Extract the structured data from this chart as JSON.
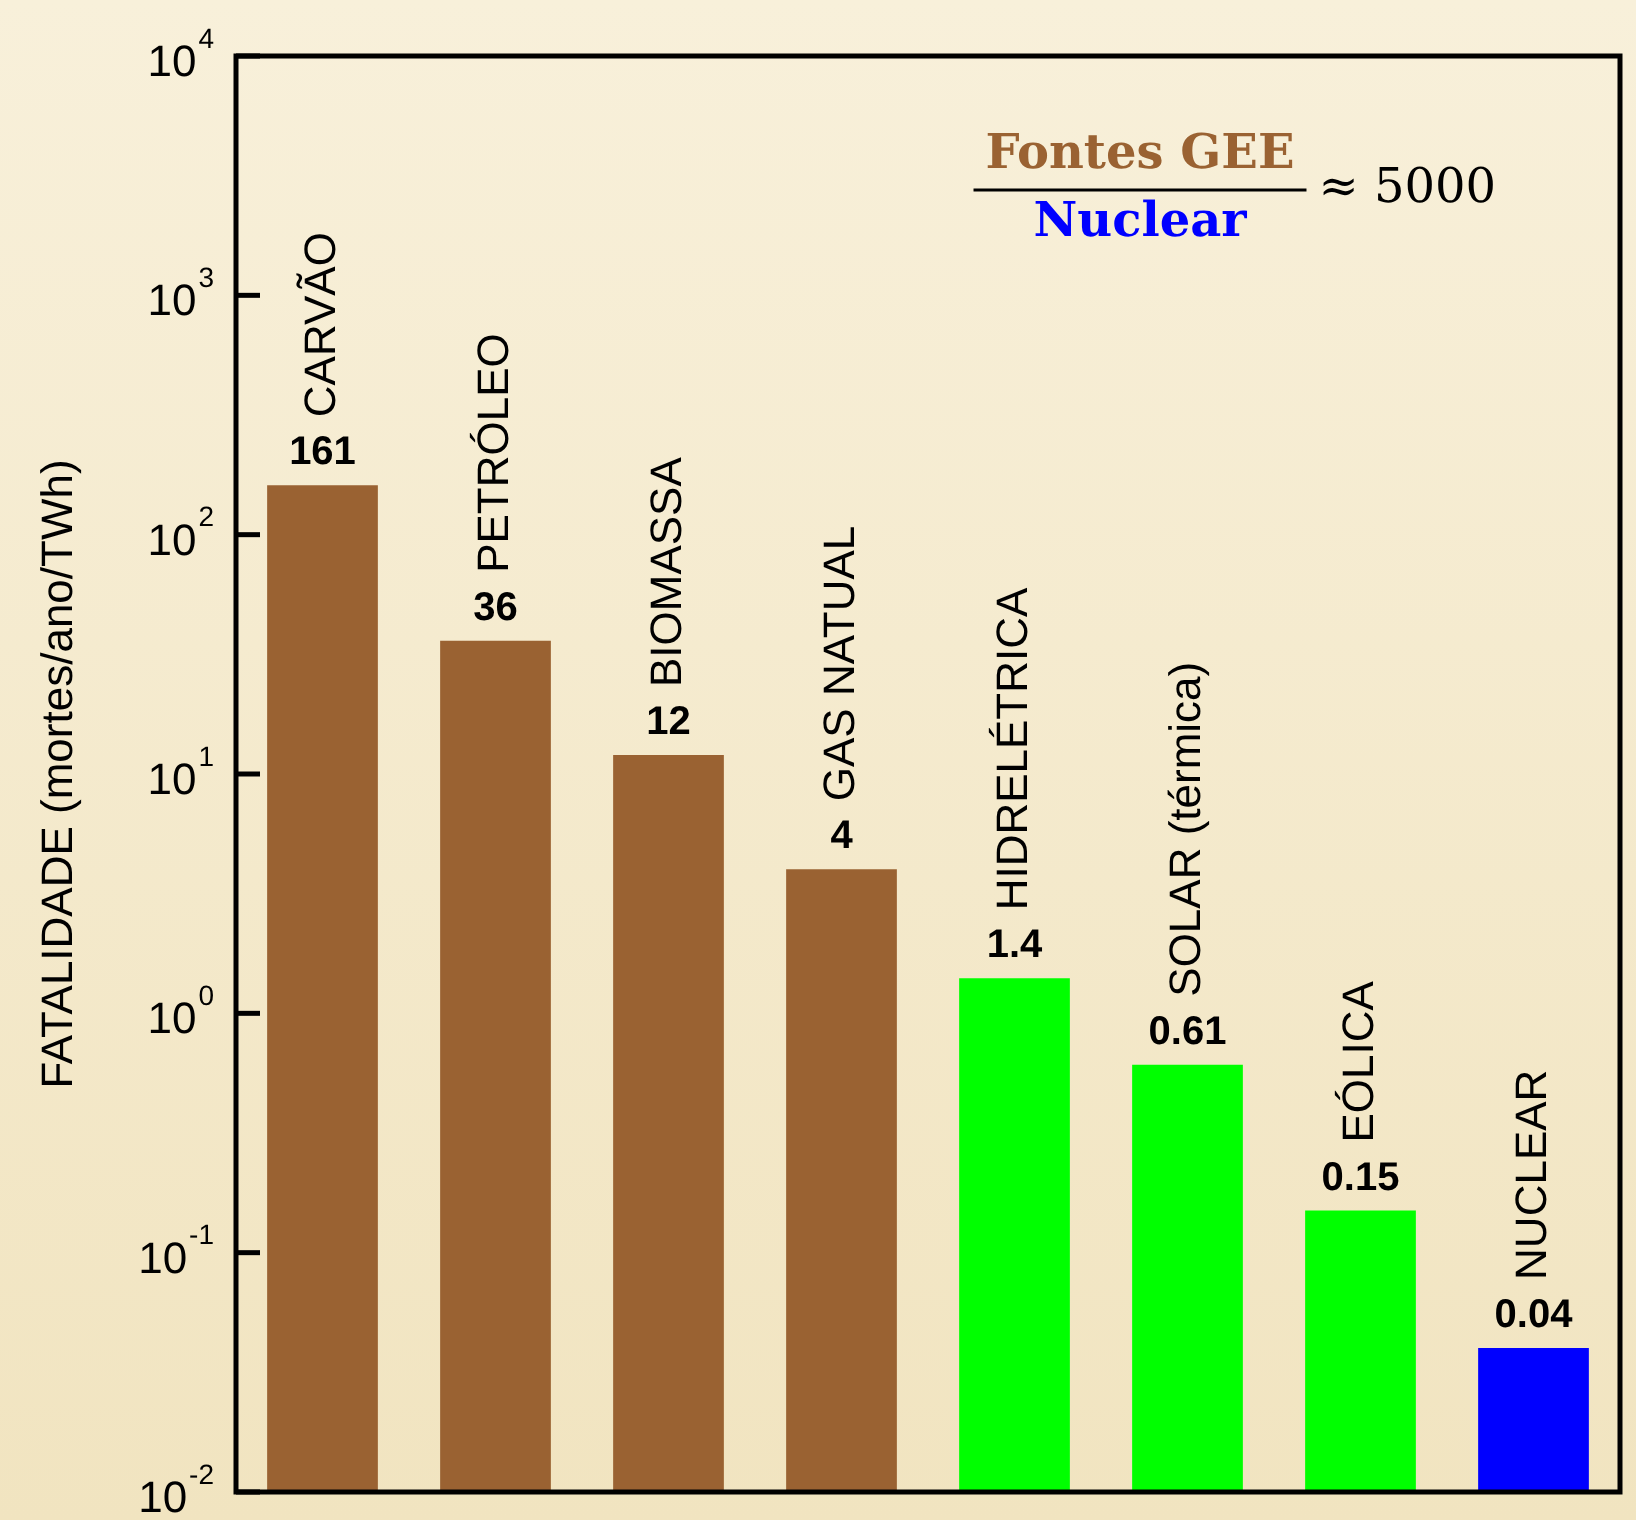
{
  "chart_data": {
    "type": "bar",
    "ylabel": "FATALIDADE (mortes/ano/TWh)",
    "categories": [
      "CARVÃO",
      "PETRÓLEO",
      "BIOMASSA",
      "GAS NATUAL",
      "HIDRELÉTRICA",
      "SOLAR (térmica)",
      "EÓLICA",
      "NUCLEAR"
    ],
    "values": [
      161,
      36,
      12,
      4,
      1.4,
      0.61,
      0.15,
      0.04
    ],
    "colors": [
      "#9a6232",
      "#9a6232",
      "#9a6232",
      "#9a6232",
      "#00ff00",
      "#00ff00",
      "#00ff00",
      "#0000ff"
    ],
    "log": true,
    "ylim": [
      0.01,
      10000
    ],
    "yticks": [
      {
        "value": 0.01,
        "label": "10$^{-2}$"
      },
      {
        "value": 0.1,
        "label": "10$^{-1}$"
      },
      {
        "value": 1,
        "label": "10$^{0}$"
      },
      {
        "value": 10,
        "label": "10$^{1}$"
      },
      {
        "value": 100,
        "label": "10$^{2}$"
      },
      {
        "value": 1000,
        "label": "10$^{3}$"
      },
      {
        "value": 10000,
        "label": "10$^{4}$"
      }
    ],
    "data_labels": true,
    "grid": false,
    "legend": false,
    "annotations": [
      "Fontes GEE",
      "Nuclear",
      "≈ 5000"
    ]
  }
}
